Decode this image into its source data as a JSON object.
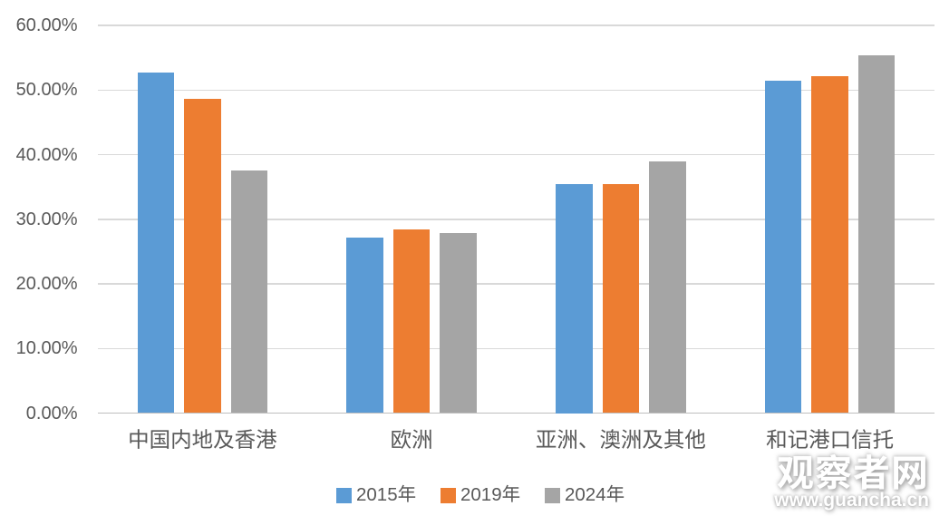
{
  "chart_data": {
    "type": "bar",
    "title": "",
    "categories": [
      "中国内地及香港",
      "欧洲",
      "亚洲、澳洲及其他",
      "和记港口信托"
    ],
    "series": [
      {
        "name": "2015年",
        "color": "#5B9BD5",
        "values": [
          52.7,
          27.2,
          35.5,
          51.4
        ]
      },
      {
        "name": "2019年",
        "color": "#ED7D31",
        "values": [
          48.6,
          28.4,
          35.4,
          52.1
        ]
      },
      {
        "name": "2024年",
        "color": "#A5A5A5",
        "values": [
          37.6,
          27.8,
          38.9,
          55.4
        ]
      }
    ],
    "xlabel": "",
    "ylabel": "",
    "ylim": [
      0,
      60
    ],
    "ytick_step": 10,
    "ytick_labels": [
      "0.00%",
      "10.00%",
      "20.00%",
      "30.00%",
      "40.00%",
      "50.00%",
      "60.00%"
    ],
    "grid": "horizontal",
    "legend_position": "bottom",
    "legend": [
      "2015年",
      "2019年",
      "2024年"
    ]
  },
  "watermark": {
    "brand": "观察者网",
    "url_text": "www.guancha.cn"
  },
  "colors": {
    "series_2015": "#5B9BD5",
    "series_2019": "#ED7D31",
    "series_2024": "#A5A5A5",
    "gridline": "#D9D9D9",
    "axis_line": "#BFBFBF",
    "label_text": "#595959",
    "background": "#FFFFFF"
  }
}
